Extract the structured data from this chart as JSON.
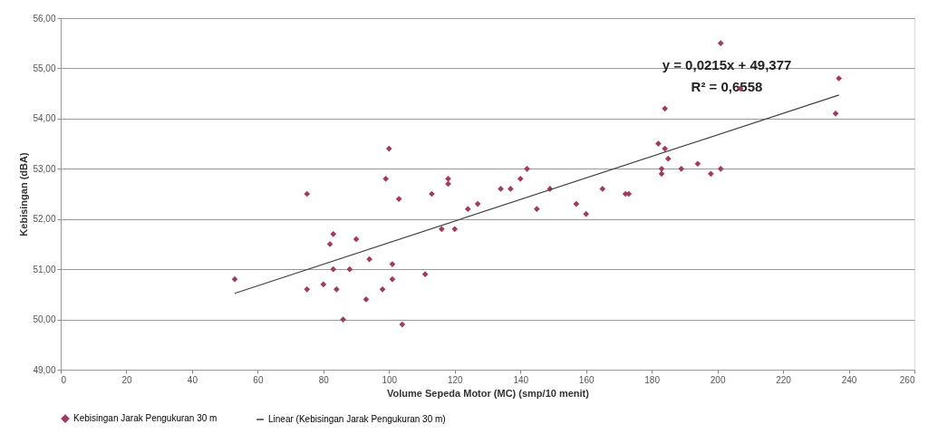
{
  "chart_data": {
    "type": "scatter",
    "xlabel": "Volume Sepeda Motor (MC) (smp/10 menit)",
    "ylabel": "Kebisingan (dBA)",
    "xlim": [
      0,
      260
    ],
    "xticks": [
      0,
      20,
      40,
      60,
      80,
      100,
      120,
      140,
      160,
      180,
      200,
      220,
      240,
      260
    ],
    "ylim": [
      49,
      56
    ],
    "yticks": [
      {
        "value": 49,
        "label": "49,00"
      },
      {
        "value": 50,
        "label": "50,00"
      },
      {
        "value": 51,
        "label": "51,00"
      },
      {
        "value": 52,
        "label": "52,00"
      },
      {
        "value": 53,
        "label": "53,00"
      },
      {
        "value": 54,
        "label": "54,00"
      },
      {
        "value": 55,
        "label": "55,00"
      },
      {
        "value": 56,
        "label": "56,00"
      }
    ],
    "grid": "y",
    "legend": "bottom",
    "annotations": [
      "y = 0,0215x + 49,377",
      "R² = 0,6558"
    ],
    "series": [
      {
        "name": "Kebisingan Jarak Pengukuran 30 m",
        "marker": "diamond",
        "color": "#a03a64",
        "x": [
          53,
          75,
          75,
          80,
          83,
          82,
          83,
          84,
          86,
          88,
          90,
          93,
          94,
          98,
          99,
          100,
          101,
          101,
          103,
          104,
          111,
          113,
          116,
          118,
          118,
          120,
          124,
          127,
          134,
          137,
          140,
          142,
          145,
          149,
          157,
          160,
          165,
          172,
          173,
          182,
          183,
          183,
          184,
          185,
          184,
          189,
          194,
          198,
          201,
          201,
          207,
          236,
          237
        ],
        "values": [
          50.8,
          50.6,
          52.5,
          50.7,
          51.0,
          51.5,
          51.7,
          50.6,
          50.0,
          51.0,
          51.6,
          50.4,
          51.2,
          50.6,
          52.8,
          53.4,
          50.8,
          51.1,
          52.4,
          49.9,
          50.9,
          52.5,
          51.8,
          52.7,
          52.8,
          51.8,
          52.2,
          52.3,
          52.6,
          52.6,
          52.8,
          53.0,
          52.2,
          52.6,
          52.3,
          52.1,
          52.6,
          52.5,
          52.5,
          53.5,
          53.0,
          52.9,
          53.4,
          53.2,
          54.2,
          53.0,
          53.1,
          52.9,
          53.0,
          55.5,
          54.6,
          54.1,
          54.8
        ]
      },
      {
        "name": "Linear (Kebisingan Jarak Pengukuran 30 m)",
        "type": "line",
        "color": "#404040",
        "line_style": "solid",
        "x": [
          53,
          237
        ],
        "values": [
          50.52,
          54.47
        ]
      }
    ]
  }
}
